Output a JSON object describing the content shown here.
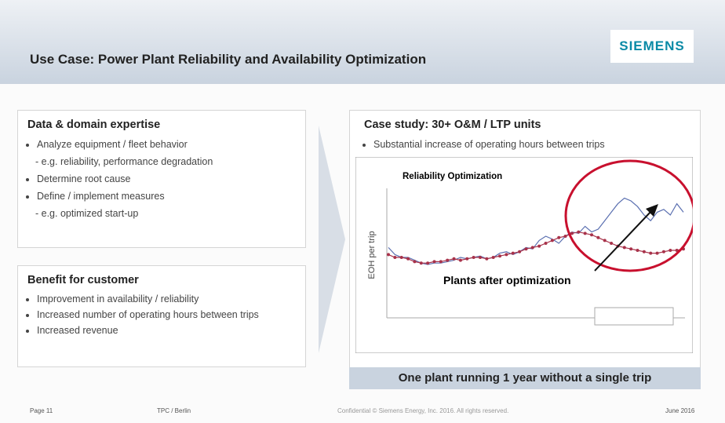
{
  "header": {
    "title": "Use Case: Power Plant Reliability and Availability Optimization",
    "logo": "SIEMENS"
  },
  "left_boxes": [
    {
      "title": "Data & domain expertise",
      "items": [
        "Analyze equipment / fleet behavior",
        "- e.g. reliability, performance degradation",
        "Determine root cause",
        "Define / implement measures",
        "- e.g. optimized start-up"
      ]
    },
    {
      "title": "Benefit for customer",
      "items": [
        "Improvement in availability / reliability",
        "Increased number of operating hours between trips",
        "Increased revenue"
      ]
    }
  ],
  "case_study": {
    "title": "Case study: 30+ O&M / LTP units",
    "items": [
      "Substantial increase of operating hours between trips"
    ],
    "chart": {
      "title": "Reliability Optimization",
      "ylabel": "EOH per trip",
      "annotation": "Plants after optimization",
      "ylim": [
        0,
        100
      ],
      "series": [
        {
          "color": "#5a6fb0",
          "values": [
            47,
            42,
            40,
            40,
            38,
            36,
            35,
            36,
            36,
            37,
            38,
            40,
            39,
            40,
            41,
            39,
            40,
            43,
            44,
            42,
            44,
            47,
            46,
            52,
            55,
            53,
            50,
            55,
            58,
            57,
            62,
            58,
            60,
            66,
            72,
            78,
            82,
            80,
            76,
            70,
            66,
            72,
            74,
            70,
            78,
            72
          ]
        },
        {
          "color": "#a8324a",
          "values": [
            42,
            40,
            40,
            39,
            37,
            36,
            36,
            37,
            37,
            38,
            39,
            38,
            39,
            40,
            40,
            39,
            40,
            41,
            42,
            43,
            44,
            46,
            47,
            48,
            50,
            52,
            54,
            55,
            57,
            58,
            57,
            56,
            54,
            52,
            50,
            48,
            47,
            46,
            45,
            44,
            43,
            43,
            44,
            45,
            45,
            46
          ]
        }
      ]
    },
    "banner": "One plant running 1 year without a single trip"
  },
  "footer": {
    "page": "Page 11",
    "location": "TPC / Berlin",
    "confidential": "Confidential © Siemens Energy, Inc. 2016. All rights reserved.",
    "date": "June 2016"
  }
}
